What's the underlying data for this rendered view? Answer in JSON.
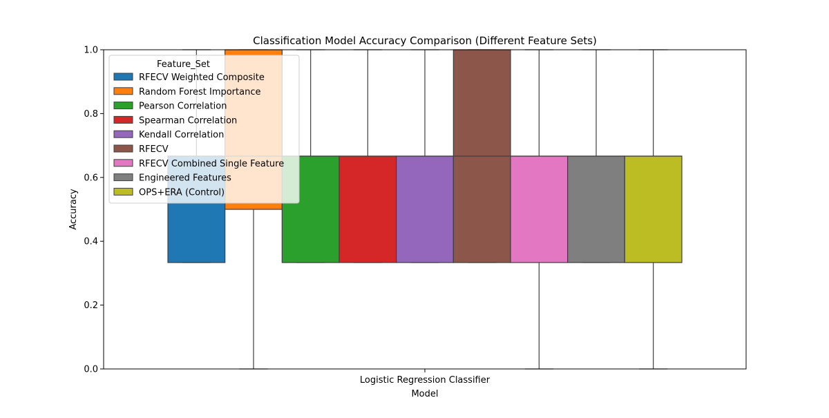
{
  "chart_data": {
    "type": "boxplot",
    "title": "Classification Model Accuracy Comparison (Different Feature Sets)",
    "xlabel": "Model",
    "ylabel": "Accuracy",
    "ylim": [
      0.0,
      1.0
    ],
    "yticks": [
      "0.0",
      "0.2",
      "0.4",
      "0.6",
      "0.8",
      "1.0"
    ],
    "categories": [
      "Logistic Regression Classifier"
    ],
    "grid": false,
    "legend": {
      "title": "Feature_Set",
      "placement": "top-left"
    },
    "series": [
      {
        "name": "RFECV Weighted Composite",
        "color": "#1f77b4",
        "min": 0.3333,
        "q1": 0.3333,
        "median": 0.6667,
        "q3": 0.6667,
        "max": 1.0
      },
      {
        "name": "Random Forest Importance",
        "color": "#ff7f0e",
        "min": 0.0,
        "q1": 0.5,
        "median": 0.6667,
        "q3": 1.0,
        "max": 1.0
      },
      {
        "name": "Pearson Correlation",
        "color": "#2ca02c",
        "min": 0.3333,
        "q1": 0.3333,
        "median": 0.6667,
        "q3": 0.6667,
        "max": 1.0
      },
      {
        "name": "Spearman Correlation",
        "color": "#d62728",
        "min": 0.3333,
        "q1": 0.3333,
        "median": 0.6667,
        "q3": 0.6667,
        "max": 1.0
      },
      {
        "name": "Kendall Correlation",
        "color": "#9467bd",
        "min": 0.3333,
        "q1": 0.3333,
        "median": 0.6667,
        "q3": 0.6667,
        "max": 1.0
      },
      {
        "name": "RFECV",
        "color": "#8c564b",
        "min": 0.3333,
        "q1": 0.3333,
        "median": 0.6667,
        "q3": 1.0,
        "max": 1.0
      },
      {
        "name": "RFECV Combined Single Feature",
        "color": "#e377c2",
        "min": 0.0,
        "q1": 0.3333,
        "median": 0.6667,
        "q3": 0.6667,
        "max": 1.0
      },
      {
        "name": "Engineered Features",
        "color": "#7f7f7f",
        "min": 0.3333,
        "q1": 0.3333,
        "median": 0.6667,
        "q3": 0.6667,
        "max": 1.0
      },
      {
        "name": "OPS+ERA (Control)",
        "color": "#bcbd22",
        "min": 0.0,
        "q1": 0.3333,
        "median": 0.6667,
        "q3": 0.6667,
        "max": 1.0
      }
    ]
  }
}
